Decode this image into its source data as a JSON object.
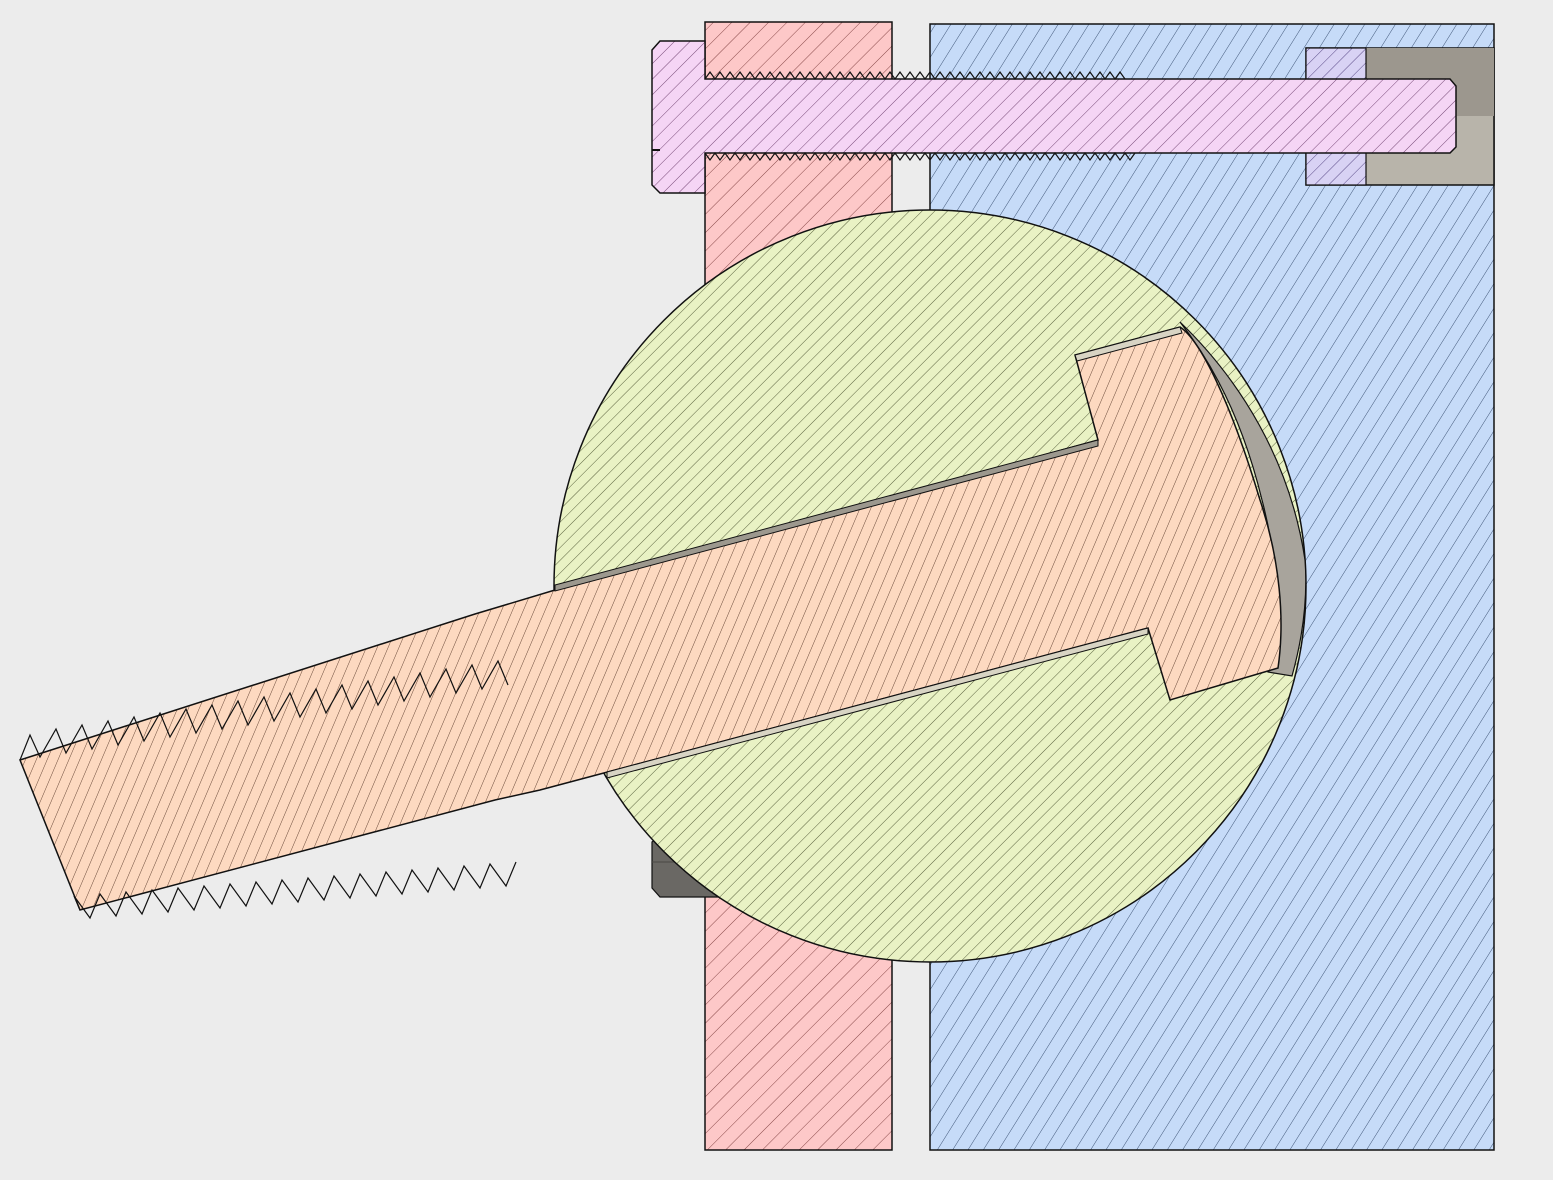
{
  "diagram": {
    "kind": "mechanical-section-view",
    "background": "#ececec",
    "stroke": "#111111",
    "parts": [
      {
        "name": "left-plate",
        "fill": "#fdc8c8"
      },
      {
        "name": "right-block",
        "fill": "#c6dbf8"
      },
      {
        "name": "cap-screw",
        "fill": "#f5d5f5"
      },
      {
        "name": "nut",
        "fill": "#a8a49c"
      },
      {
        "name": "spherical-washer",
        "fill": "#e9f2c4"
      },
      {
        "name": "tilted-t-bolt",
        "fill": "#fdd9c0"
      }
    ]
  }
}
